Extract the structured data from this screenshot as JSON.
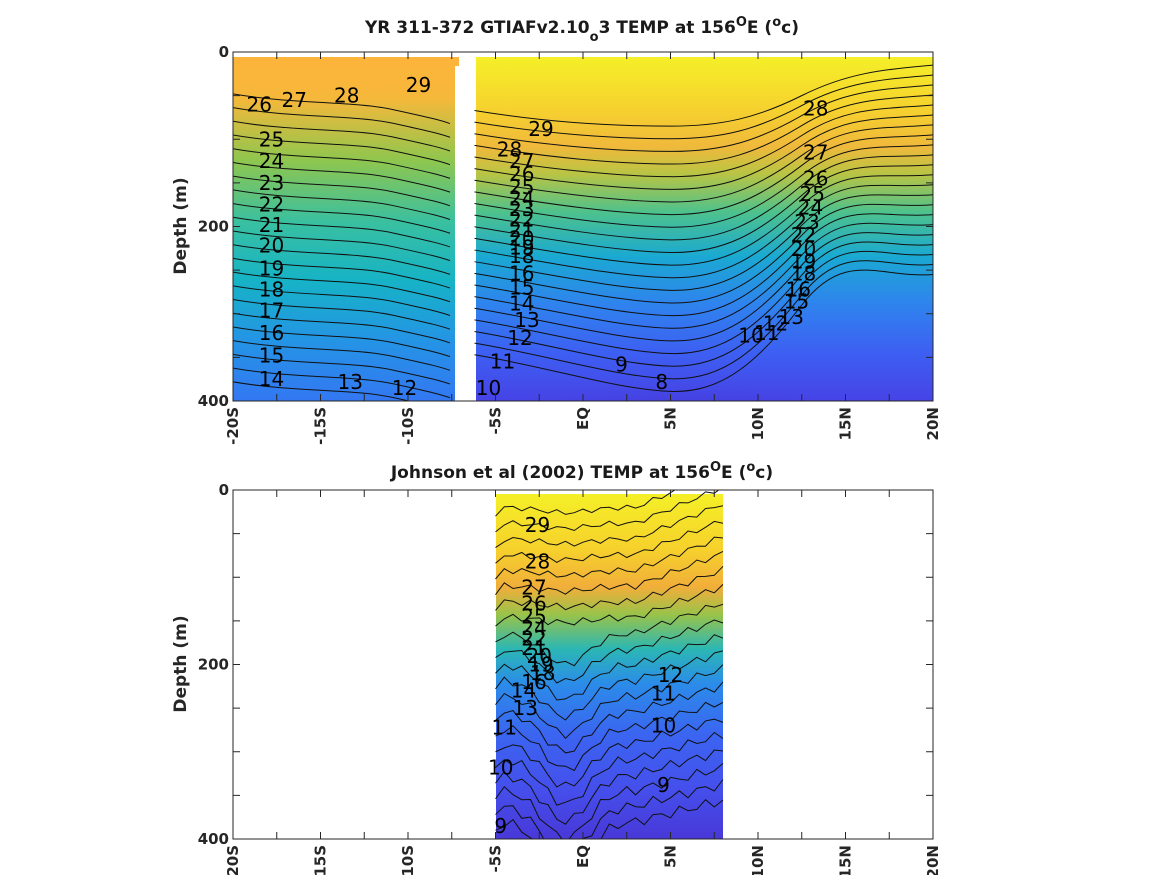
{
  "chart_data": [
    {
      "type": "heatmap",
      "title": "YR 311-372 GTIAFv2.10_o3 TEMP at 156°E (°c)",
      "title_parts": {
        "prefix": "YR 311-372 GTIAFv2.10",
        "subscript": "o",
        "middle": "3 TEMP at 156",
        "sup1": "O",
        "mid2": "E (",
        "sup2": "o",
        "suffix": "c)"
      },
      "ylabel": "Depth (m)",
      "xlabel": "",
      "x_ticks": [
        "-20S",
        "-15S",
        "-10S",
        "-5S",
        "EQ",
        "5N",
        "10N",
        "15N",
        "20N"
      ],
      "y_ticks": [
        "0",
        "200",
        "400"
      ],
      "xlim": [
        -20,
        20
      ],
      "ylim": [
        0,
        400
      ],
      "y_reversed": true,
      "colormap": [
        "#3d26a8",
        "#3e4ef0",
        "#2f81ee",
        "#13b3c9",
        "#3bbf8c",
        "#9ec44a",
        "#f0ba3c",
        "#fcde2c",
        "#f5f527"
      ],
      "color_range": [
        6,
        30
      ],
      "data_gap_x": [
        -7.5,
        -6.3
      ],
      "data_extent_x": [
        -20,
        20
      ],
      "contour_levels": [
        8,
        9,
        10,
        11,
        12,
        13,
        14,
        15,
        16,
        17,
        18,
        19,
        20,
        21,
        22,
        23,
        24,
        25,
        26,
        27,
        28,
        29
      ],
      "contour_labels": [
        {
          "text": "26",
          "x": -18.5,
          "y": 60
        },
        {
          "text": "27",
          "x": -16.5,
          "y": 55
        },
        {
          "text": "28",
          "x": -13.5,
          "y": 50
        },
        {
          "text": "29",
          "x": -9.4,
          "y": 38
        },
        {
          "text": "25",
          "x": -17.8,
          "y": 100
        },
        {
          "text": "24",
          "x": -17.8,
          "y": 125
        },
        {
          "text": "23",
          "x": -17.8,
          "y": 150
        },
        {
          "text": "22",
          "x": -17.8,
          "y": 175
        },
        {
          "text": "21",
          "x": -17.8,
          "y": 198
        },
        {
          "text": "20",
          "x": -17.8,
          "y": 222
        },
        {
          "text": "19",
          "x": -17.8,
          "y": 248
        },
        {
          "text": "18",
          "x": -17.8,
          "y": 272
        },
        {
          "text": "17",
          "x": -17.8,
          "y": 296
        },
        {
          "text": "16",
          "x": -17.8,
          "y": 322
        },
        {
          "text": "15",
          "x": -17.8,
          "y": 348
        },
        {
          "text": "14",
          "x": -17.8,
          "y": 375
        },
        {
          "text": "13",
          "x": -13.3,
          "y": 378
        },
        {
          "text": "12",
          "x": -10.2,
          "y": 385
        },
        {
          "text": "29",
          "x": -2.4,
          "y": 88
        },
        {
          "text": "28",
          "x": -4.2,
          "y": 112
        },
        {
          "text": "27",
          "x": -3.5,
          "y": 125
        },
        {
          "text": "26",
          "x": -3.5,
          "y": 140
        },
        {
          "text": "25",
          "x": -3.5,
          "y": 155
        },
        {
          "text": "24",
          "x": -3.5,
          "y": 168
        },
        {
          "text": "23",
          "x": -3.5,
          "y": 180
        },
        {
          "text": "22",
          "x": -3.5,
          "y": 192
        },
        {
          "text": "21",
          "x": -3.5,
          "y": 204
        },
        {
          "text": "20",
          "x": -3.5,
          "y": 214
        },
        {
          "text": "19",
          "x": -3.5,
          "y": 224
        },
        {
          "text": "18",
          "x": -3.5,
          "y": 234
        },
        {
          "text": "16",
          "x": -3.5,
          "y": 254
        },
        {
          "text": "15",
          "x": -3.5,
          "y": 270
        },
        {
          "text": "14",
          "x": -3.5,
          "y": 288
        },
        {
          "text": "13",
          "x": -3.2,
          "y": 307
        },
        {
          "text": "12",
          "x": -3.6,
          "y": 328
        },
        {
          "text": "11",
          "x": -4.6,
          "y": 355
        },
        {
          "text": "10",
          "x": -5.4,
          "y": 385
        },
        {
          "text": "9",
          "x": 2.2,
          "y": 358
        },
        {
          "text": "8",
          "x": 4.5,
          "y": 378
        },
        {
          "text": "28",
          "x": 13.3,
          "y": 65
        },
        {
          "text": "27",
          "x": 13.3,
          "y": 115
        },
        {
          "text": "26",
          "x": 13.3,
          "y": 145
        },
        {
          "text": "25",
          "x": 13.1,
          "y": 163
        },
        {
          "text": "24",
          "x": 13.0,
          "y": 178
        },
        {
          "text": "23",
          "x": 12.8,
          "y": 195
        },
        {
          "text": "22",
          "x": 12.6,
          "y": 210
        },
        {
          "text": "20",
          "x": 12.6,
          "y": 226
        },
        {
          "text": "19",
          "x": 12.6,
          "y": 240
        },
        {
          "text": "18",
          "x": 12.6,
          "y": 254
        },
        {
          "text": "16",
          "x": 12.3,
          "y": 272
        },
        {
          "text": "15",
          "x": 12.2,
          "y": 286
        },
        {
          "text": "13",
          "x": 11.9,
          "y": 304
        },
        {
          "text": "12",
          "x": 11.0,
          "y": 311
        },
        {
          "text": "11",
          "x": 10.5,
          "y": 322
        },
        {
          "text": "10",
          "x": 9.6,
          "y": 325
        }
      ]
    },
    {
      "type": "heatmap",
      "title": "Johnson et al (2002) TEMP at 156°E (°c)",
      "title_parts": {
        "prefix": "Johnson et al (2002) TEMP at 156",
        "sup1": "O",
        "mid2": "E (",
        "sup2": "o",
        "suffix": "c)"
      },
      "ylabel": "Depth (m)",
      "xlabel": "",
      "x_ticks": [
        "-20S",
        "-15S",
        "-10S",
        "-5S",
        "EQ",
        "5N",
        "10N",
        "15N",
        "20N"
      ],
      "y_ticks": [
        "0",
        "200",
        "400"
      ],
      "xlim": [
        -20,
        20
      ],
      "ylim": [
        0,
        400
      ],
      "y_reversed": true,
      "colormap": [
        "#3d26a8",
        "#3e4ef0",
        "#2f81ee",
        "#13b3c9",
        "#3bbf8c",
        "#9ec44a",
        "#f0ba3c",
        "#fcde2c",
        "#f5f527"
      ],
      "color_range": [
        6,
        30
      ],
      "data_extent_x": [
        -5,
        8
      ],
      "contour_levels": [
        9,
        10,
        11,
        12,
        13,
        14,
        15,
        16,
        17,
        18,
        19,
        20,
        21,
        22,
        23,
        24,
        25,
        26,
        27,
        28,
        29
      ],
      "contour_labels": [
        {
          "text": "29",
          "x": -2.6,
          "y": 40
        },
        {
          "text": "28",
          "x": -2.6,
          "y": 82
        },
        {
          "text": "27",
          "x": -2.8,
          "y": 112
        },
        {
          "text": "26",
          "x": -2.8,
          "y": 130
        },
        {
          "text": "25",
          "x": -2.8,
          "y": 145
        },
        {
          "text": "24",
          "x": -2.8,
          "y": 158
        },
        {
          "text": "22",
          "x": -2.8,
          "y": 170
        },
        {
          "text": "21",
          "x": -2.8,
          "y": 181
        },
        {
          "text": "20",
          "x": -2.5,
          "y": 190
        },
        {
          "text": "19",
          "x": -2.4,
          "y": 200
        },
        {
          "text": "18",
          "x": -2.3,
          "y": 210
        },
        {
          "text": "16",
          "x": -2.8,
          "y": 220
        },
        {
          "text": "14",
          "x": -3.4,
          "y": 230
        },
        {
          "text": "13",
          "x": -3.3,
          "y": 250
        },
        {
          "text": "11",
          "x": -4.5,
          "y": 272
        },
        {
          "text": "10",
          "x": -4.7,
          "y": 318
        },
        {
          "text": "9",
          "x": -4.7,
          "y": 385
        },
        {
          "text": "12",
          "x": 5.0,
          "y": 212
        },
        {
          "text": "11",
          "x": 4.6,
          "y": 233
        },
        {
          "text": "10",
          "x": 4.6,
          "y": 270
        },
        {
          "text": "9",
          "x": 4.6,
          "y": 338
        }
      ]
    }
  ]
}
